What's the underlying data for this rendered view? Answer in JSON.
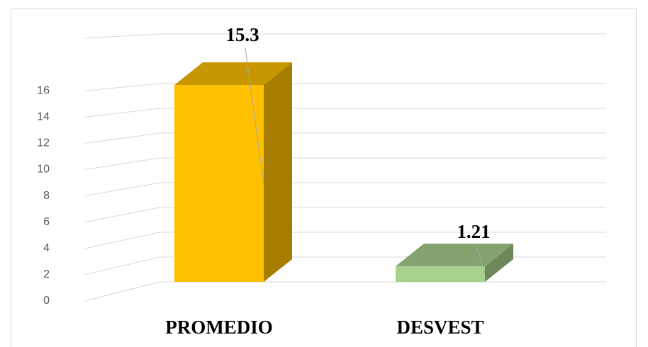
{
  "chart_data": {
    "type": "bar3d",
    "categories": [
      "PROMEDIO",
      "DESVEST"
    ],
    "values": [
      15.3,
      1.21
    ],
    "colors": [
      "#FFC000",
      "#A9D18E"
    ],
    "ylim": [
      0,
      20
    ],
    "yticks": [
      0,
      2,
      4,
      6,
      8,
      10,
      12,
      14,
      16
    ],
    "grid": true
  }
}
